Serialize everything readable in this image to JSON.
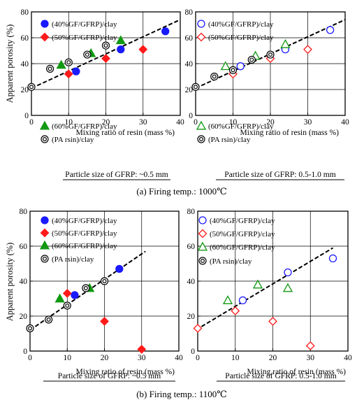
{
  "caption_top": "(a) Firing temp.: 1000℃",
  "caption_bottom": "(b) Firing temp.: 1100℃",
  "colors": {
    "blue": "#1a1aff",
    "red": "#ff1a1a",
    "green": "#119911",
    "black": "#000000"
  },
  "chart_data": [
    {
      "type": "scatter",
      "panel": "1000C, GFRP ~0.5 mm",
      "ylabel": "Apparent porosity (%)",
      "xlabel": "Mixing ratio of resin (mass %)",
      "subcaption": "Particle size of GFRP: ~0.5 mm",
      "xlim": [
        0,
        40
      ],
      "ylim": [
        0,
        80
      ],
      "xticks": [
        "0",
        "10",
        "20",
        "30",
        "40"
      ],
      "yticks": [
        "0",
        "20",
        "40",
        "60",
        "80"
      ],
      "grid": true,
      "trendline": {
        "x": [
          0,
          40
        ],
        "y": [
          21,
          74
        ]
      },
      "series": [
        {
          "name": "(40%GF/GFRP)/clay",
          "marker": "circle",
          "filled": true,
          "color": "#1a1aff",
          "x": [
            12,
            24,
            36
          ],
          "y": [
            34,
            51,
            65
          ]
        },
        {
          "name": "(50%GF/GFRP)/clay",
          "marker": "diamond",
          "filled": true,
          "color": "#ff1a1a",
          "x": [
            10,
            20,
            30
          ],
          "y": [
            32,
            44,
            51
          ]
        },
        {
          "name": "(60%GF/GFRP)/clay",
          "marker": "triangle",
          "filled": true,
          "color": "#119911",
          "x": [
            8,
            16,
            24
          ],
          "y": [
            39,
            48,
            58
          ]
        },
        {
          "name": "(PA rsin)/clay",
          "marker": "bullseye",
          "filled": false,
          "color": "#000000",
          "x": [
            0,
            5,
            10,
            15,
            20
          ],
          "y": [
            22,
            36,
            41,
            47,
            54
          ]
        }
      ]
    },
    {
      "type": "scatter",
      "panel": "1000C, GFRP 0.5-1.0 mm",
      "ylabel": "",
      "xlabel": "Mixing ratio of resin (mass %)",
      "subcaption": "Particle size of GFRP: 0.5-1.0 mm",
      "xlim": [
        0,
        40
      ],
      "ylim": [
        0,
        80
      ],
      "xticks": [
        "0",
        "10",
        "20",
        "30",
        "40"
      ],
      "yticks": [
        "0",
        "20",
        "40",
        "60",
        "80"
      ],
      "grid": true,
      "trendline": {
        "x": [
          0,
          40
        ],
        "y": [
          21,
          74
        ]
      },
      "series": [
        {
          "name": "(40%GF/GFRP)/clay",
          "marker": "circle",
          "filled": false,
          "color": "#1a1aff",
          "x": [
            12,
            24,
            36
          ],
          "y": [
            38,
            51,
            66
          ]
        },
        {
          "name": "(50%GF/GFRP)/clay",
          "marker": "diamond",
          "filled": false,
          "color": "#ff1a1a",
          "x": [
            10,
            20,
            30
          ],
          "y": [
            32,
            44,
            51
          ]
        },
        {
          "name": "(60%GF/GFRP)/clay",
          "marker": "triangle",
          "filled": false,
          "color": "#119911",
          "x": [
            8,
            16,
            24
          ],
          "y": [
            38,
            46,
            55
          ]
        },
        {
          "name": "(PA rsin)/clay",
          "marker": "bullseye",
          "filled": false,
          "color": "#000000",
          "x": [
            0,
            5,
            10,
            15,
            20
          ],
          "y": [
            22,
            30,
            35,
            43,
            47
          ]
        }
      ]
    },
    {
      "type": "scatter",
      "panel": "1100C, GFRP ~0.5 mm",
      "ylabel": "Apparent porosity (%)",
      "xlabel": "Mixing ratio of resin (mass %)",
      "subcaption": "Particle size of GFRP: ~0.5 mm",
      "xlim": [
        0,
        40
      ],
      "ylim": [
        0,
        80
      ],
      "xticks": [
        "0",
        "10",
        "20",
        "30",
        "40"
      ],
      "yticks": [
        "0",
        "20",
        "40",
        "60",
        "80"
      ],
      "grid": true,
      "trendline": {
        "x": [
          0,
          31
        ],
        "y": [
          12,
          57
        ]
      },
      "series": [
        {
          "name": "(40%GF/GFRP)/clay",
          "marker": "circle",
          "filled": true,
          "color": "#1a1aff",
          "x": [
            12,
            24
          ],
          "y": [
            32,
            47
          ]
        },
        {
          "name": "(50%GF/GFRP)/clay",
          "marker": "diamond",
          "filled": true,
          "color": "#ff1a1a",
          "x": [
            10,
            20,
            30
          ],
          "y": [
            33,
            17,
            1
          ]
        },
        {
          "name": "(60%GF/GFRP)/clay",
          "marker": "triangle",
          "filled": true,
          "color": "#119911",
          "x": [
            8,
            16
          ],
          "y": [
            30,
            36
          ]
        },
        {
          "name": "(PA rsin)/clay",
          "marker": "bullseye",
          "filled": false,
          "color": "#000000",
          "x": [
            0,
            5,
            10,
            15,
            20
          ],
          "y": [
            13,
            18,
            26,
            36,
            40
          ]
        }
      ]
    },
    {
      "type": "scatter",
      "panel": "1100C, GFRP 0.5-1.0 mm",
      "ylabel": "",
      "xlabel": "Mixing ratio of resin (mass %)",
      "subcaption": "Particle size of GFRP: 0.5-1.0 mm",
      "xlim": [
        0,
        40
      ],
      "ylim": [
        0,
        80
      ],
      "xticks": [
        "0",
        "10",
        "20",
        "30",
        "40"
      ],
      "yticks": [
        "0",
        "20",
        "40",
        "60",
        "80"
      ],
      "grid": true,
      "trendline": {
        "x": [
          1,
          36
        ],
        "y": [
          14,
          59
        ]
      },
      "series": [
        {
          "name": "(40%GF/GFRP)/clay",
          "marker": "circle",
          "filled": false,
          "color": "#1a1aff",
          "x": [
            12,
            24,
            36
          ],
          "y": [
            29,
            45,
            53
          ]
        },
        {
          "name": "(50%GF/GFRP)/clay",
          "marker": "diamond",
          "filled": false,
          "color": "#ff1a1a",
          "x": [
            0,
            10,
            20,
            30
          ],
          "y": [
            13,
            23,
            17,
            3
          ]
        },
        {
          "name": "(60%GF/GFRP)/clay",
          "marker": "triangle",
          "filled": false,
          "color": "#119911",
          "x": [
            8,
            16,
            24
          ],
          "y": [
            29,
            38,
            36
          ]
        },
        {
          "name": "(PA rsin)/clay",
          "marker": "bullseye",
          "filled": false,
          "color": "#000000",
          "x": [],
          "y": []
        }
      ]
    }
  ]
}
